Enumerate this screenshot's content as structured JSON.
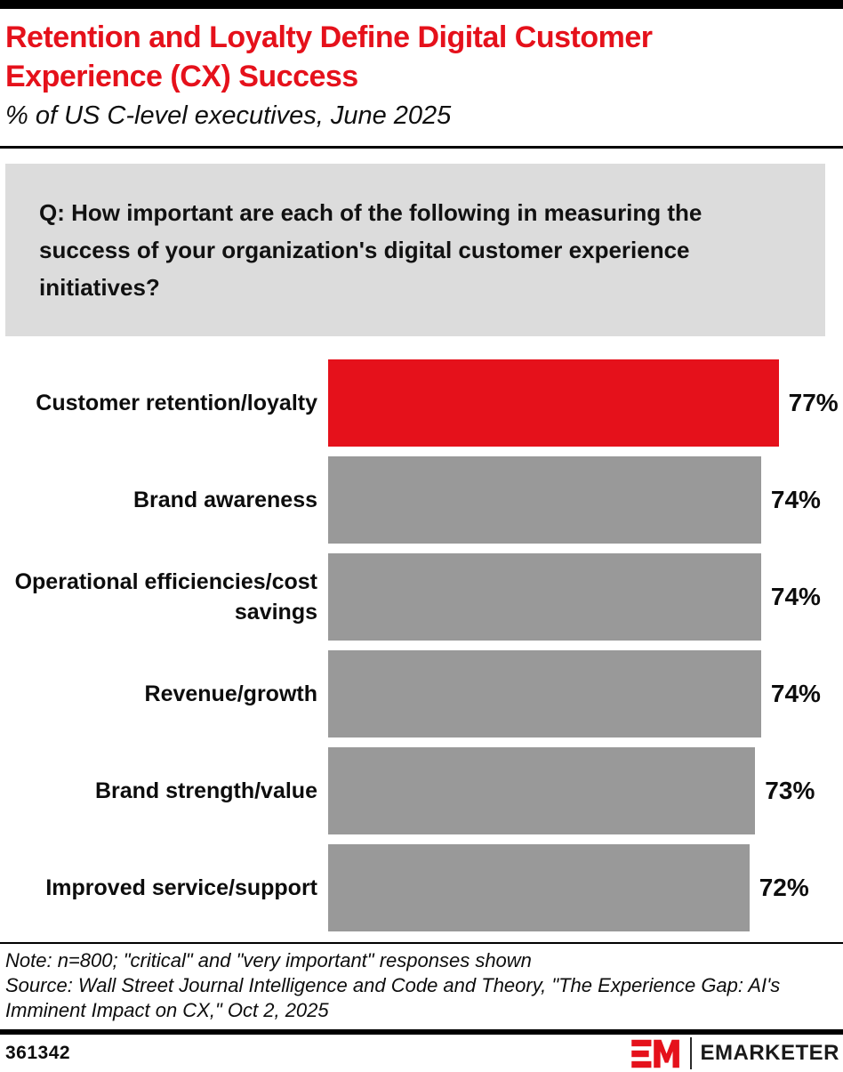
{
  "header": {
    "title": "Retention and Loyalty Define Digital Customer Experience (CX) Success",
    "subtitle": "% of US C-level executives, June 2025"
  },
  "question": "Q: How important are each of the following in measuring the success of your organization's digital customer experience initiatives?",
  "chart_data": {
    "type": "bar",
    "orientation": "horizontal",
    "title": "Retention and Loyalty Define Digital Customer Experience (CX) Success",
    "subtitle": "% of US C-level executives, June 2025",
    "categories": [
      "Customer retention/loyalty",
      "Brand awareness",
      "Operational efficiencies/cost savings",
      "Revenue/growth",
      "Brand strength/value",
      "Improved service/support"
    ],
    "values": [
      77,
      74,
      74,
      74,
      73,
      72
    ],
    "value_labels": [
      "77%",
      "74%",
      "74%",
      "74%",
      "73%",
      "72%"
    ],
    "bar_colors": [
      "#e5111b",
      "#999999",
      "#999999",
      "#999999",
      "#999999",
      "#999999"
    ],
    "xlim": [
      0,
      88
    ],
    "grid": false,
    "legend": false,
    "unit": "%"
  },
  "notes": {
    "note": "Note: n=800; \"critical\" and \"very important\" responses shown",
    "source": "Source: Wall Street Journal Intelligence and Code and Theory, \"The Experience Gap: AI's Imminent Impact on CX,\" Oct 2, 2025"
  },
  "footer": {
    "chart_id": "361342",
    "brand_name": "EMARKETER"
  },
  "colors": {
    "accent_red": "#e5111b",
    "bar_gray": "#999999",
    "question_bg": "#dcdcdc",
    "rule_black": "#000000"
  }
}
